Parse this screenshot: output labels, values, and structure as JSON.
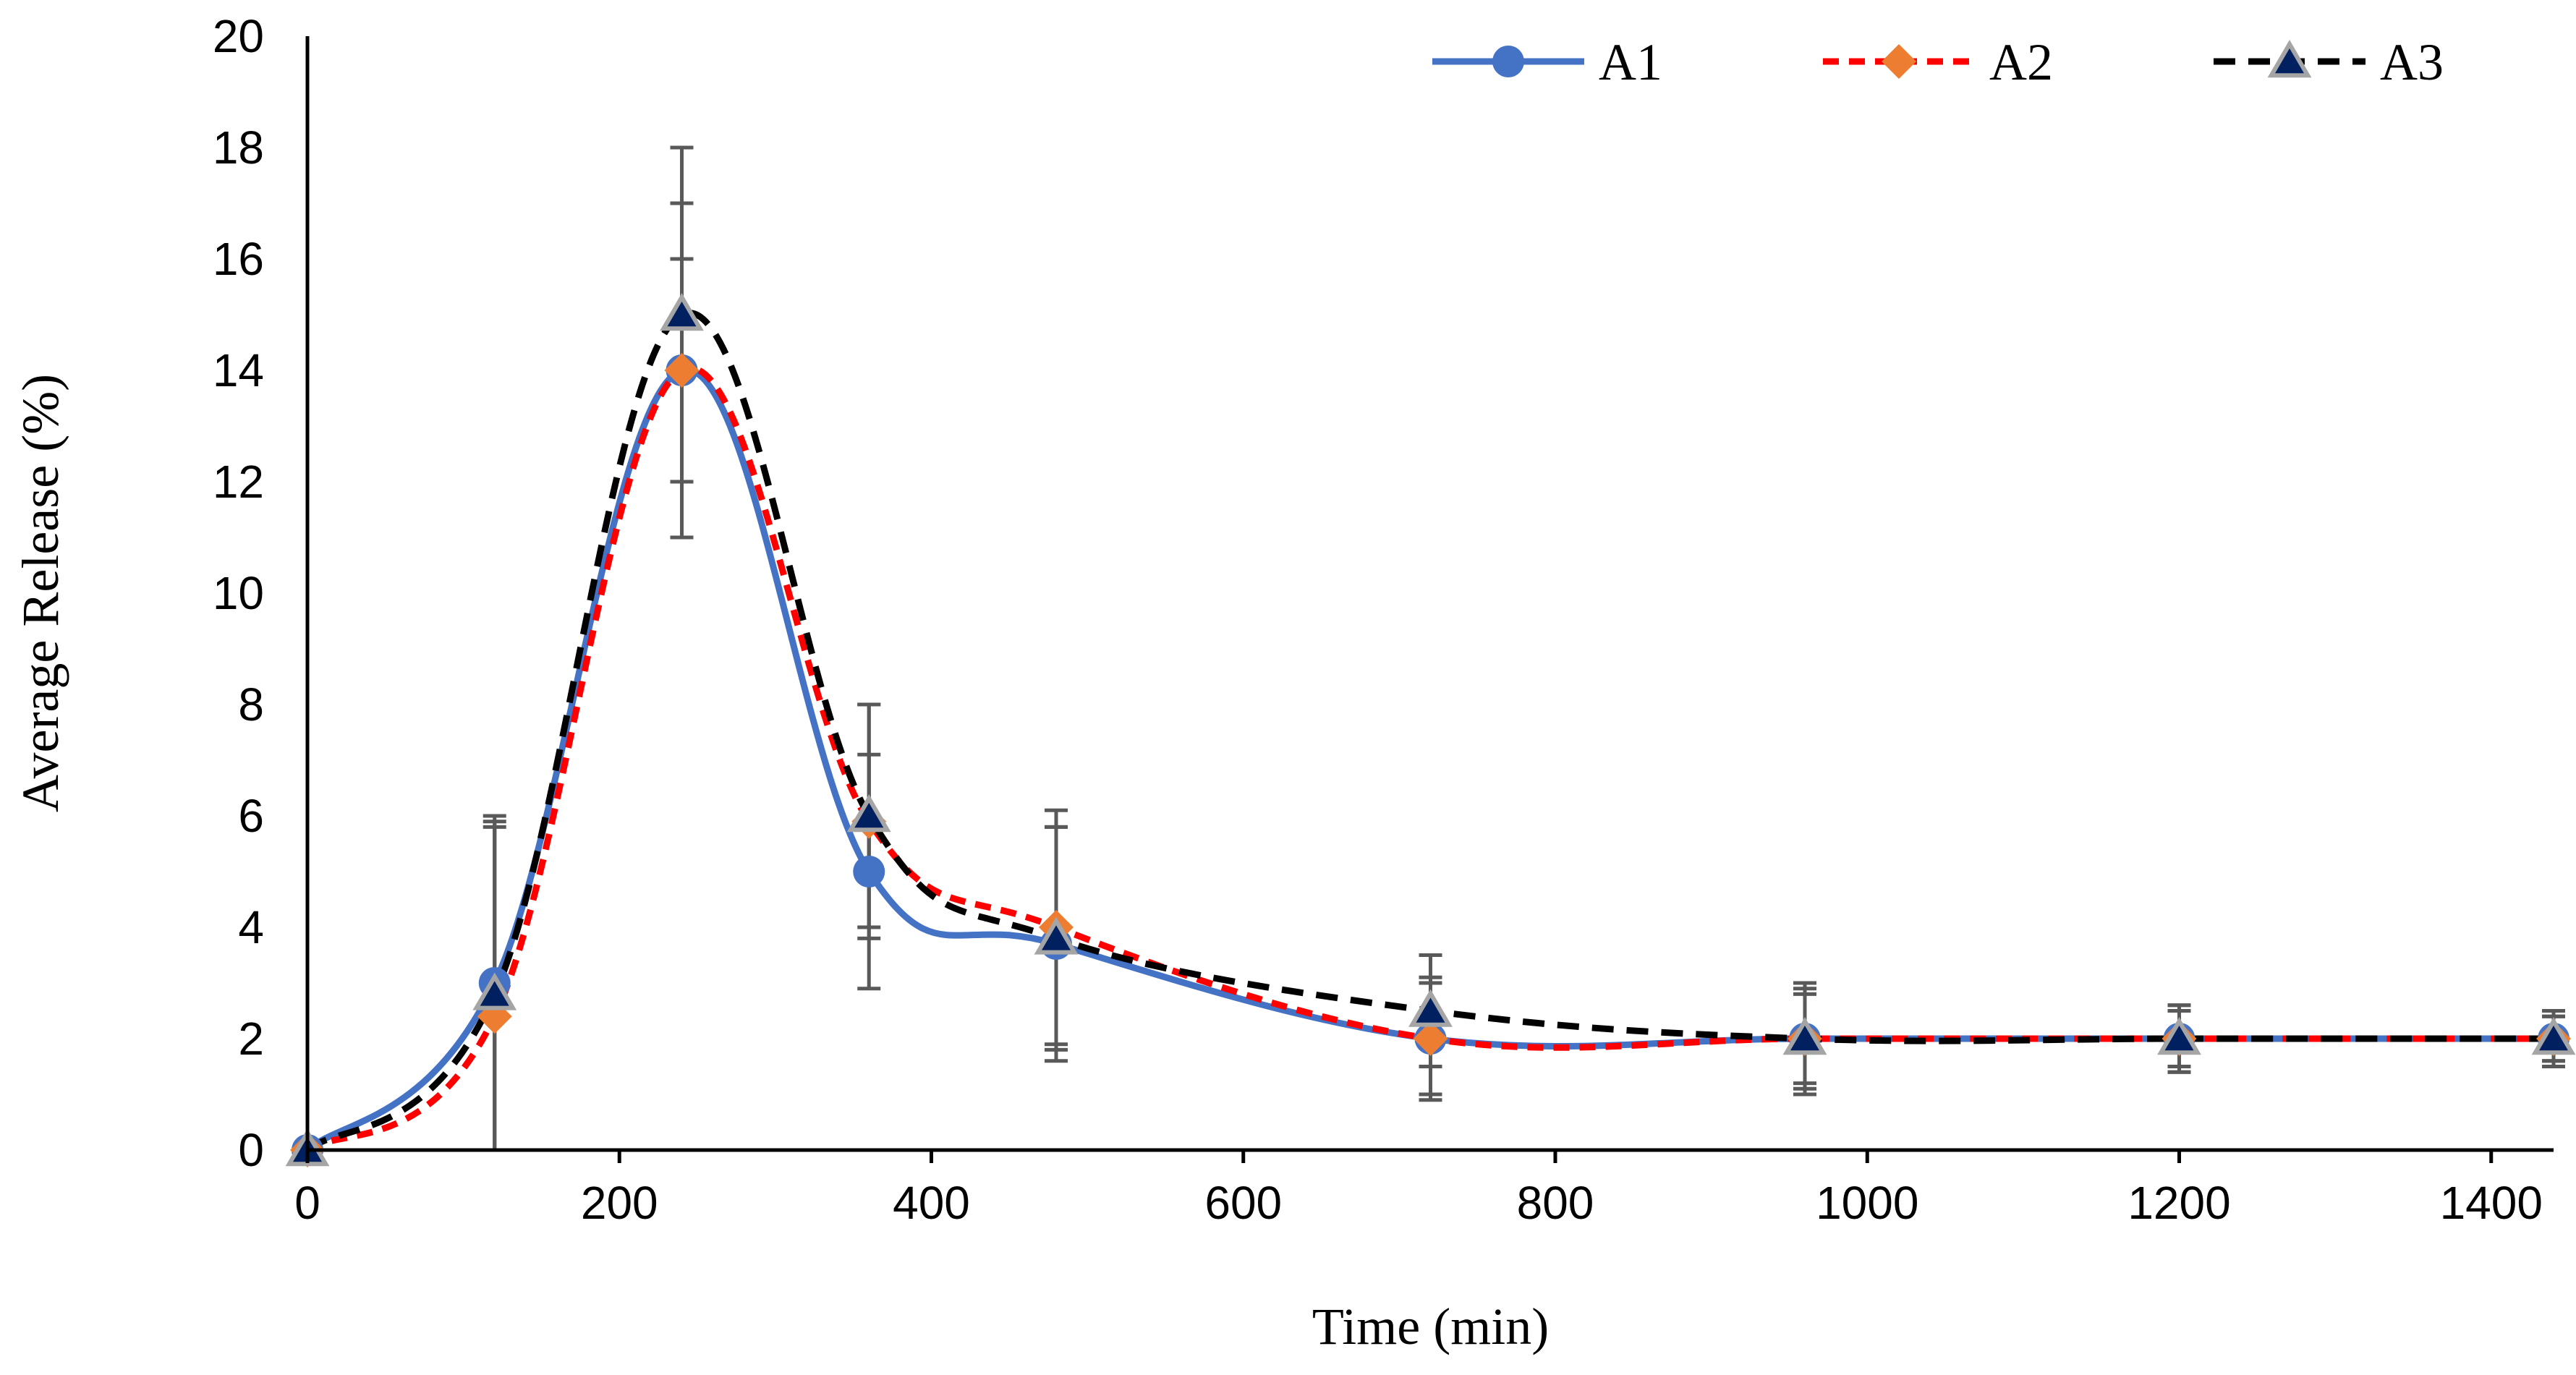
{
  "chart_data": {
    "type": "line",
    "title": "",
    "xlabel": "Time (min)",
    "ylabel": "Average Release (%)",
    "xlim": [
      0,
      1440
    ],
    "ylim": [
      0,
      20
    ],
    "x_ticks": [
      0,
      200,
      400,
      600,
      800,
      1000,
      1200,
      1400
    ],
    "y_ticks": [
      0,
      2,
      4,
      6,
      8,
      10,
      12,
      14,
      16,
      18,
      20
    ],
    "grid": false,
    "legend_position": "top-right",
    "x": [
      0,
      120,
      240,
      360,
      480,
      720,
      960,
      1200,
      1440
    ],
    "series": [
      {
        "name": "A1",
        "color": "#4472C4",
        "line_style": "solid",
        "marker": "circle",
        "values": [
          0,
          3.0,
          14.0,
          5.0,
          3.7,
          2.0,
          2.0,
          2.0,
          2.0
        ],
        "errors": [
          0,
          3.0,
          3.0,
          2.1,
          2.1,
          1.1,
          1.0,
          0.6,
          0.4
        ]
      },
      {
        "name": "A2",
        "color": "#FF0000",
        "marker_color": "#ED7D31",
        "line_style": "dashed",
        "marker": "diamond",
        "values": [
          0,
          2.4,
          14.0,
          5.9,
          4.0,
          2.0,
          2.0,
          2.0,
          2.0
        ],
        "errors": [
          0,
          3.5,
          2.0,
          2.1,
          2.1,
          1.0,
          0.8,
          0.5,
          0.4
        ]
      },
      {
        "name": "A3",
        "color": "#000000",
        "marker_color": "#002060",
        "marker_edge": "#A5A5A5",
        "line_style": "dashed",
        "marker": "triangle",
        "values": [
          0,
          2.8,
          15.0,
          6.0,
          3.8,
          2.5,
          2.0,
          2.0,
          2.0
        ],
        "errors": [
          0,
          3.0,
          3.0,
          2.0,
          2.0,
          1.0,
          0.9,
          0.6,
          0.5
        ]
      }
    ]
  }
}
